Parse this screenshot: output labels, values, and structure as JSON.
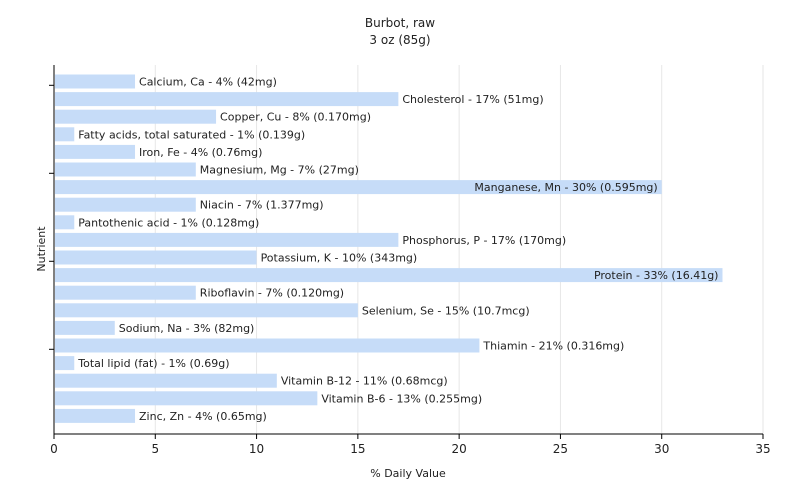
{
  "chart_data": {
    "type": "bar",
    "orientation": "horizontal",
    "title": "Burbot, raw",
    "subtitle": "3 oz (85g)",
    "xlabel": "% Daily Value",
    "ylabel": "Nutrient",
    "xlim": [
      0,
      35
    ],
    "xticks": [
      "0",
      "5",
      "10",
      "15",
      "20",
      "25",
      "30",
      "35"
    ],
    "grid": "vertical",
    "bar_color": "#c6dcf8",
    "categories": [
      "Calcium, Ca",
      "Cholesterol",
      "Copper, Cu",
      "Fatty acids, total saturated",
      "Iron, Fe",
      "Magnesium, Mg",
      "Manganese, Mn",
      "Niacin",
      "Pantothenic acid",
      "Phosphorus, P",
      "Potassium, K",
      "Protein",
      "Riboflavin",
      "Selenium, Se",
      "Sodium, Na",
      "Thiamin",
      "Total lipid (fat)",
      "Vitamin B-12",
      "Vitamin B-6",
      "Zinc, Zn"
    ],
    "values": [
      4,
      17,
      8,
      1,
      4,
      7,
      30,
      7,
      1,
      17,
      10,
      33,
      7,
      15,
      3,
      21,
      1,
      11,
      13,
      4
    ],
    "data_labels": [
      "Calcium, Ca - 4% (42mg)",
      "Cholesterol - 17% (51mg)",
      "Copper, Cu - 8% (0.170mg)",
      "Fatty acids, total saturated - 1% (0.139g)",
      "Iron, Fe - 4% (0.76mg)",
      "Magnesium, Mg - 7% (27mg)",
      "Manganese, Mn - 30% (0.595mg)",
      "Niacin - 7% (1.377mg)",
      "Pantothenic acid - 1% (0.128mg)",
      "Phosphorus, P - 17% (170mg)",
      "Potassium, K - 10% (343mg)",
      "Protein - 33% (16.41g)",
      "Riboflavin - 7% (0.120mg)",
      "Selenium, Se - 15% (10.7mcg)",
      "Sodium, Na - 3% (82mg)",
      "Thiamin - 21% (0.316mg)",
      "Total lipid (fat) - 1% (0.69g)",
      "Vitamin B-12 - 11% (0.68mcg)",
      "Vitamin B-6 - 13% (0.255mg)",
      "Zinc, Zn - 4% (0.65mg)"
    ]
  }
}
